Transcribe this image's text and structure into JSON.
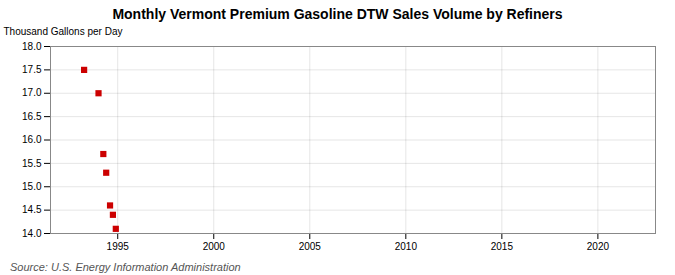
{
  "chart_data": {
    "type": "scatter",
    "title": "Monthly Vermont Premium Gasoline DTW Sales Volume by Refiners",
    "y_label": "Thousand Gallons per Day",
    "source": "Source: U.S. Energy Information Administration",
    "x": [
      1993.25,
      1994.0,
      1994.25,
      1994.4,
      1994.6,
      1994.75,
      1994.9
    ],
    "values": [
      17.5,
      17.0,
      15.7,
      15.3,
      14.6,
      14.4,
      14.1
    ],
    "color": "#cc0000",
    "marker": "square",
    "xlim": [
      1991.5,
      2023
    ],
    "ylim": [
      14.0,
      18.0
    ],
    "xticks": [
      1995,
      2000,
      2005,
      2010,
      2015,
      2020
    ],
    "yticks": [
      {
        "value": 14.0,
        "label": "14.0"
      },
      14.5,
      {
        "value": 15.0,
        "label": "15.0"
      },
      15.5,
      {
        "value": 16.0,
        "label": "16.0"
      },
      16.5,
      {
        "value": 17.0,
        "label": "17.0"
      },
      17.5,
      {
        "value": 18.0,
        "label": "18.0"
      }
    ],
    "grid": true
  }
}
